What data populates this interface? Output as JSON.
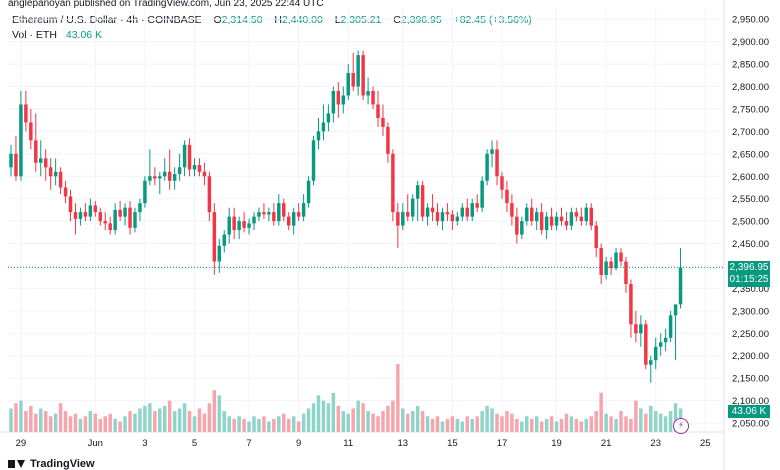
{
  "publisher": "anglepanoyan published on TradingView.com, Jun 23, 2025 22:44 UTC",
  "legend": {
    "symbol": "Ethereum / U.S. Dollar · 4h · COINBASE",
    "open_label": "O",
    "open": "2,314.50",
    "high_label": "H",
    "high": "2,440.00",
    "low_label": "L",
    "low": "2,305.21",
    "close_label": "C",
    "close": "2,396.95",
    "change": "+82.45 (+3.56%)"
  },
  "volume_legend": {
    "label": "Vol · ETH",
    "value": "43.06 K"
  },
  "price_tag": {
    "price": "2,396.95",
    "countdown": "01:15:25"
  },
  "volume_tag": "43.06 K",
  "footer_brand": "TradingView",
  "colors": {
    "up": "#089981",
    "down": "#f23645",
    "up_vol": "#8fd3c9",
    "down_vol": "#f7a5ac",
    "grid": "#f0f3fa"
  },
  "icons": {
    "replay": "lightning-icon",
    "logo": "tradingview-logo-icon"
  },
  "chart_data": {
    "type": "candlestick",
    "symbol": "Ethereum / U.S. Dollar",
    "interval": "4h",
    "exchange": "COINBASE",
    "ylim": [
      2030,
      2975
    ],
    "y_ticks": [
      "2,950.00",
      "2,900.00",
      "2,850.00",
      "2,800.00",
      "2,750.00",
      "2,700.00",
      "2,650.00",
      "2,600.00",
      "2,550.00",
      "2,500.00",
      "2,450.00",
      "2,400.00",
      "2,350.00",
      "2,300.00",
      "2,250.00",
      "2,200.00",
      "2,150.00",
      "2,100.00",
      "2,050.00"
    ],
    "x_ticks": [
      {
        "label": "29",
        "index": 2
      },
      {
        "label": "Jun",
        "index": 17
      },
      {
        "label": "3",
        "index": 27
      },
      {
        "label": "5",
        "index": 37
      },
      {
        "label": "7",
        "index": 48
      },
      {
        "label": "9",
        "index": 58
      },
      {
        "label": "11",
        "index": 68
      },
      {
        "label": "13",
        "index": 79
      },
      {
        "label": "15",
        "index": 89
      },
      {
        "label": "17",
        "index": 99
      },
      {
        "label": "19",
        "index": 110
      },
      {
        "label": "21",
        "index": 120
      },
      {
        "label": "23",
        "index": 130
      },
      {
        "label": "25",
        "index": 140
      }
    ],
    "candles": [
      {
        "o": 2620,
        "h": 2670,
        "l": 2600,
        "c": 2650
      },
      {
        "o": 2650,
        "h": 2690,
        "l": 2590,
        "c": 2600
      },
      {
        "o": 2600,
        "h": 2790,
        "l": 2590,
        "c": 2760
      },
      {
        "o": 2760,
        "h": 2790,
        "l": 2700,
        "c": 2720
      },
      {
        "o": 2720,
        "h": 2750,
        "l": 2660,
        "c": 2680
      },
      {
        "o": 2680,
        "h": 2740,
        "l": 2610,
        "c": 2630
      },
      {
        "o": 2630,
        "h": 2680,
        "l": 2600,
        "c": 2640
      },
      {
        "o": 2640,
        "h": 2660,
        "l": 2590,
        "c": 2620
      },
      {
        "o": 2620,
        "h": 2640,
        "l": 2570,
        "c": 2600
      },
      {
        "o": 2600,
        "h": 2640,
        "l": 2580,
        "c": 2610
      },
      {
        "o": 2610,
        "h": 2620,
        "l": 2560,
        "c": 2575
      },
      {
        "o": 2575,
        "h": 2590,
        "l": 2540,
        "c": 2555
      },
      {
        "o": 2555,
        "h": 2570,
        "l": 2500,
        "c": 2520
      },
      {
        "o": 2520,
        "h": 2540,
        "l": 2470,
        "c": 2505
      },
      {
        "o": 2505,
        "h": 2530,
        "l": 2490,
        "c": 2520
      },
      {
        "o": 2520,
        "h": 2540,
        "l": 2500,
        "c": 2510
      },
      {
        "o": 2510,
        "h": 2550,
        "l": 2500,
        "c": 2535
      },
      {
        "o": 2535,
        "h": 2545,
        "l": 2510,
        "c": 2520
      },
      {
        "o": 2520,
        "h": 2530,
        "l": 2490,
        "c": 2500
      },
      {
        "o": 2500,
        "h": 2520,
        "l": 2480,
        "c": 2495
      },
      {
        "o": 2495,
        "h": 2510,
        "l": 2470,
        "c": 2480
      },
      {
        "o": 2480,
        "h": 2540,
        "l": 2470,
        "c": 2525
      },
      {
        "o": 2525,
        "h": 2545,
        "l": 2500,
        "c": 2510
      },
      {
        "o": 2510,
        "h": 2540,
        "l": 2490,
        "c": 2530
      },
      {
        "o": 2530,
        "h": 2545,
        "l": 2470,
        "c": 2485
      },
      {
        "o": 2485,
        "h": 2530,
        "l": 2475,
        "c": 2520
      },
      {
        "o": 2520,
        "h": 2550,
        "l": 2500,
        "c": 2540
      },
      {
        "o": 2540,
        "h": 2600,
        "l": 2530,
        "c": 2590
      },
      {
        "o": 2590,
        "h": 2660,
        "l": 2580,
        "c": 2600
      },
      {
        "o": 2600,
        "h": 2620,
        "l": 2580,
        "c": 2595
      },
      {
        "o": 2595,
        "h": 2610,
        "l": 2560,
        "c": 2600
      },
      {
        "o": 2600,
        "h": 2640,
        "l": 2590,
        "c": 2610
      },
      {
        "o": 2610,
        "h": 2660,
        "l": 2570,
        "c": 2590
      },
      {
        "o": 2590,
        "h": 2620,
        "l": 2570,
        "c": 2605
      },
      {
        "o": 2605,
        "h": 2650,
        "l": 2590,
        "c": 2620
      },
      {
        "o": 2620,
        "h": 2680,
        "l": 2600,
        "c": 2670
      },
      {
        "o": 2670,
        "h": 2685,
        "l": 2600,
        "c": 2615
      },
      {
        "o": 2615,
        "h": 2640,
        "l": 2600,
        "c": 2625
      },
      {
        "o": 2625,
        "h": 2640,
        "l": 2600,
        "c": 2610
      },
      {
        "o": 2610,
        "h": 2630,
        "l": 2580,
        "c": 2600
      },
      {
        "o": 2600,
        "h": 2610,
        "l": 2500,
        "c": 2520
      },
      {
        "o": 2520,
        "h": 2540,
        "l": 2380,
        "c": 2410
      },
      {
        "o": 2410,
        "h": 2460,
        "l": 2385,
        "c": 2445
      },
      {
        "o": 2445,
        "h": 2480,
        "l": 2430,
        "c": 2470
      },
      {
        "o": 2470,
        "h": 2530,
        "l": 2450,
        "c": 2510
      },
      {
        "o": 2510,
        "h": 2530,
        "l": 2460,
        "c": 2480
      },
      {
        "o": 2480,
        "h": 2510,
        "l": 2460,
        "c": 2500
      },
      {
        "o": 2500,
        "h": 2520,
        "l": 2475,
        "c": 2485
      },
      {
        "o": 2485,
        "h": 2505,
        "l": 2470,
        "c": 2495
      },
      {
        "o": 2495,
        "h": 2520,
        "l": 2480,
        "c": 2510
      },
      {
        "o": 2510,
        "h": 2530,
        "l": 2500,
        "c": 2520
      },
      {
        "o": 2520,
        "h": 2540,
        "l": 2505,
        "c": 2515
      },
      {
        "o": 2515,
        "h": 2530,
        "l": 2500,
        "c": 2520
      },
      {
        "o": 2520,
        "h": 2540,
        "l": 2490,
        "c": 2500
      },
      {
        "o": 2500,
        "h": 2560,
        "l": 2490,
        "c": 2540
      },
      {
        "o": 2540,
        "h": 2550,
        "l": 2500,
        "c": 2510
      },
      {
        "o": 2510,
        "h": 2520,
        "l": 2480,
        "c": 2490
      },
      {
        "o": 2490,
        "h": 2530,
        "l": 2470,
        "c": 2520
      },
      {
        "o": 2520,
        "h": 2540,
        "l": 2500,
        "c": 2510
      },
      {
        "o": 2510,
        "h": 2560,
        "l": 2500,
        "c": 2540
      },
      {
        "o": 2540,
        "h": 2600,
        "l": 2530,
        "c": 2590
      },
      {
        "o": 2590,
        "h": 2690,
        "l": 2580,
        "c": 2680
      },
      {
        "o": 2680,
        "h": 2730,
        "l": 2660,
        "c": 2700
      },
      {
        "o": 2700,
        "h": 2760,
        "l": 2680,
        "c": 2720
      },
      {
        "o": 2720,
        "h": 2760,
        "l": 2700,
        "c": 2740
      },
      {
        "o": 2740,
        "h": 2800,
        "l": 2720,
        "c": 2790
      },
      {
        "o": 2790,
        "h": 2810,
        "l": 2730,
        "c": 2760
      },
      {
        "o": 2760,
        "h": 2800,
        "l": 2740,
        "c": 2780
      },
      {
        "o": 2780,
        "h": 2850,
        "l": 2770,
        "c": 2830
      },
      {
        "o": 2830,
        "h": 2875,
        "l": 2790,
        "c": 2800
      },
      {
        "o": 2800,
        "h": 2880,
        "l": 2780,
        "c": 2870
      },
      {
        "o": 2870,
        "h": 2880,
        "l": 2770,
        "c": 2780
      },
      {
        "o": 2780,
        "h": 2820,
        "l": 2760,
        "c": 2790
      },
      {
        "o": 2790,
        "h": 2800,
        "l": 2750,
        "c": 2760
      },
      {
        "o": 2760,
        "h": 2790,
        "l": 2710,
        "c": 2730
      },
      {
        "o": 2730,
        "h": 2760,
        "l": 2690,
        "c": 2710
      },
      {
        "o": 2710,
        "h": 2720,
        "l": 2630,
        "c": 2650
      },
      {
        "o": 2650,
        "h": 2660,
        "l": 2500,
        "c": 2520
      },
      {
        "o": 2520,
        "h": 2540,
        "l": 2440,
        "c": 2490
      },
      {
        "o": 2490,
        "h": 2540,
        "l": 2480,
        "c": 2520
      },
      {
        "o": 2520,
        "h": 2560,
        "l": 2500,
        "c": 2510
      },
      {
        "o": 2510,
        "h": 2560,
        "l": 2500,
        "c": 2550
      },
      {
        "o": 2550,
        "h": 2590,
        "l": 2500,
        "c": 2580
      },
      {
        "o": 2580,
        "h": 2590,
        "l": 2500,
        "c": 2510
      },
      {
        "o": 2510,
        "h": 2540,
        "l": 2490,
        "c": 2530
      },
      {
        "o": 2530,
        "h": 2560,
        "l": 2500,
        "c": 2520
      },
      {
        "o": 2520,
        "h": 2540,
        "l": 2490,
        "c": 2500
      },
      {
        "o": 2500,
        "h": 2530,
        "l": 2480,
        "c": 2520
      },
      {
        "o": 2520,
        "h": 2540,
        "l": 2500,
        "c": 2515
      },
      {
        "o": 2515,
        "h": 2525,
        "l": 2480,
        "c": 2500
      },
      {
        "o": 2500,
        "h": 2520,
        "l": 2490,
        "c": 2510
      },
      {
        "o": 2510,
        "h": 2540,
        "l": 2500,
        "c": 2530
      },
      {
        "o": 2530,
        "h": 2550,
        "l": 2500,
        "c": 2510
      },
      {
        "o": 2510,
        "h": 2550,
        "l": 2500,
        "c": 2540
      },
      {
        "o": 2540,
        "h": 2560,
        "l": 2520,
        "c": 2530
      },
      {
        "o": 2530,
        "h": 2600,
        "l": 2520,
        "c": 2590
      },
      {
        "o": 2590,
        "h": 2660,
        "l": 2580,
        "c": 2650
      },
      {
        "o": 2650,
        "h": 2680,
        "l": 2620,
        "c": 2660
      },
      {
        "o": 2660,
        "h": 2680,
        "l": 2580,
        "c": 2600
      },
      {
        "o": 2600,
        "h": 2610,
        "l": 2550,
        "c": 2570
      },
      {
        "o": 2570,
        "h": 2590,
        "l": 2520,
        "c": 2540
      },
      {
        "o": 2540,
        "h": 2560,
        "l": 2490,
        "c": 2510
      },
      {
        "o": 2510,
        "h": 2530,
        "l": 2450,
        "c": 2470
      },
      {
        "o": 2470,
        "h": 2510,
        "l": 2460,
        "c": 2500
      },
      {
        "o": 2500,
        "h": 2540,
        "l": 2490,
        "c": 2530
      },
      {
        "o": 2530,
        "h": 2550,
        "l": 2490,
        "c": 2500
      },
      {
        "o": 2500,
        "h": 2530,
        "l": 2480,
        "c": 2520
      },
      {
        "o": 2520,
        "h": 2540,
        "l": 2470,
        "c": 2480
      },
      {
        "o": 2480,
        "h": 2520,
        "l": 2460,
        "c": 2510
      },
      {
        "o": 2510,
        "h": 2530,
        "l": 2480,
        "c": 2490
      },
      {
        "o": 2490,
        "h": 2520,
        "l": 2480,
        "c": 2510
      },
      {
        "o": 2510,
        "h": 2530,
        "l": 2490,
        "c": 2500
      },
      {
        "o": 2500,
        "h": 2520,
        "l": 2480,
        "c": 2490
      },
      {
        "o": 2490,
        "h": 2530,
        "l": 2480,
        "c": 2520
      },
      {
        "o": 2520,
        "h": 2530,
        "l": 2500,
        "c": 2510
      },
      {
        "o": 2510,
        "h": 2530,
        "l": 2490,
        "c": 2500
      },
      {
        "o": 2500,
        "h": 2540,
        "l": 2490,
        "c": 2530
      },
      {
        "o": 2530,
        "h": 2540,
        "l": 2480,
        "c": 2490
      },
      {
        "o": 2490,
        "h": 2500,
        "l": 2420,
        "c": 2440
      },
      {
        "o": 2440,
        "h": 2450,
        "l": 2360,
        "c": 2380
      },
      {
        "o": 2380,
        "h": 2420,
        "l": 2370,
        "c": 2410
      },
      {
        "o": 2410,
        "h": 2420,
        "l": 2380,
        "c": 2395
      },
      {
        "o": 2395,
        "h": 2440,
        "l": 2390,
        "c": 2430
      },
      {
        "o": 2430,
        "h": 2440,
        "l": 2400,
        "c": 2410
      },
      {
        "o": 2410,
        "h": 2420,
        "l": 2340,
        "c": 2360
      },
      {
        "o": 2360,
        "h": 2370,
        "l": 2240,
        "c": 2270
      },
      {
        "o": 2270,
        "h": 2300,
        "l": 2230,
        "c": 2250
      },
      {
        "o": 2250,
        "h": 2290,
        "l": 2220,
        "c": 2270
      },
      {
        "o": 2270,
        "h": 2280,
        "l": 2170,
        "c": 2180
      },
      {
        "o": 2180,
        "h": 2200,
        "l": 2140,
        "c": 2190
      },
      {
        "o": 2190,
        "h": 2240,
        "l": 2170,
        "c": 2220
      },
      {
        "o": 2220,
        "h": 2250,
        "l": 2200,
        "c": 2230
      },
      {
        "o": 2230,
        "h": 2260,
        "l": 2210,
        "c": 2240
      },
      {
        "o": 2240,
        "h": 2300,
        "l": 2230,
        "c": 2290
      },
      {
        "o": 2290,
        "h": 2310,
        "l": 2190,
        "c": 2314.5
      },
      {
        "o": 2314.5,
        "h": 2440,
        "l": 2305.21,
        "c": 2396.95
      }
    ],
    "volume": [
      45,
      55,
      60,
      40,
      50,
      35,
      45,
      40,
      30,
      35,
      55,
      40,
      30,
      35,
      25,
      30,
      40,
      35,
      25,
      30,
      35,
      25,
      20,
      30,
      40,
      35,
      45,
      50,
      55,
      40,
      45,
      50,
      60,
      40,
      45,
      55,
      40,
      30,
      45,
      35,
      55,
      80,
      70,
      40,
      30,
      25,
      30,
      25,
      20,
      30,
      25,
      30,
      20,
      25,
      30,
      35,
      25,
      30,
      20,
      35,
      45,
      55,
      70,
      60,
      55,
      75,
      50,
      40,
      35,
      45,
      60,
      55,
      40,
      35,
      30,
      40,
      50,
      60,
      130,
      45,
      35,
      40,
      50,
      40,
      30,
      25,
      30,
      20,
      25,
      30,
      25,
      20,
      30,
      25,
      30,
      40,
      50,
      45,
      35,
      30,
      40,
      35,
      25,
      20,
      30,
      25,
      30,
      20,
      25,
      30,
      20,
      25,
      35,
      30,
      25,
      20,
      25,
      30,
      40,
      75,
      35,
      30,
      25,
      40,
      30,
      25,
      60,
      45,
      35,
      50,
      40,
      35,
      30,
      40,
      55,
      45
    ]
  }
}
